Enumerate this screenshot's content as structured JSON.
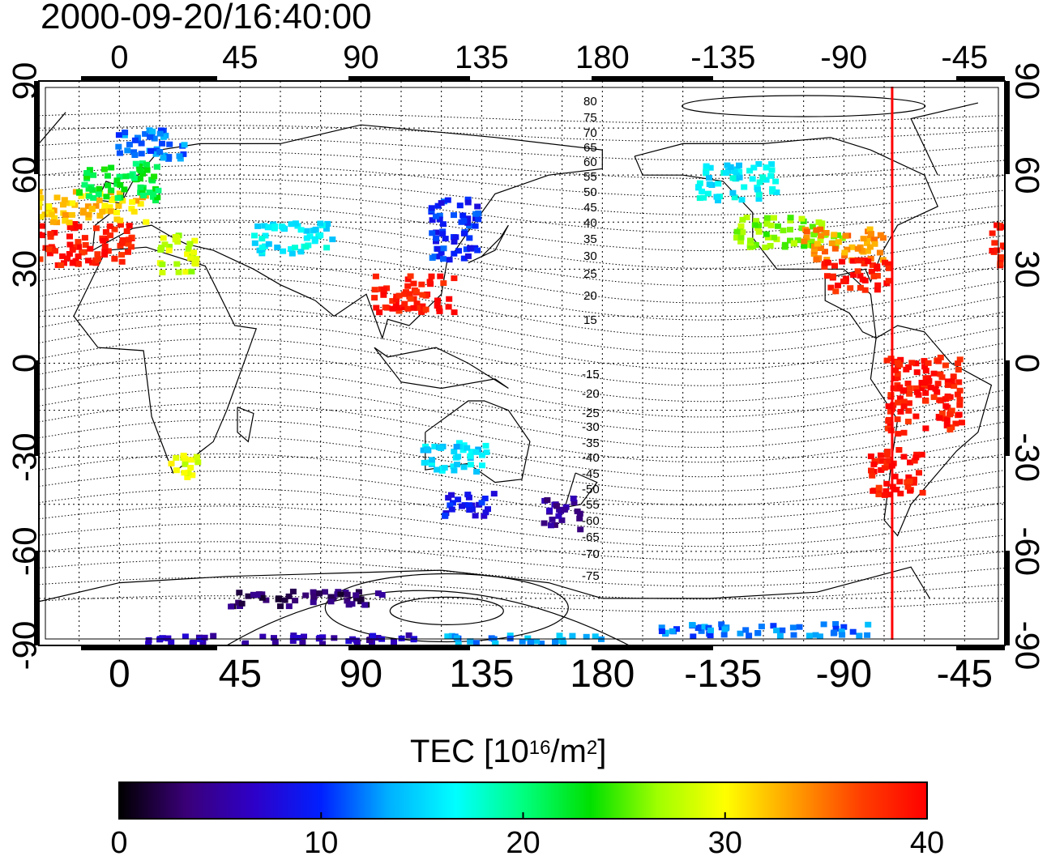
{
  "title": "2000-09-20/16:40:00",
  "x_ticks": [
    "0",
    "45",
    "90",
    "135",
    "180",
    "-135",
    "-90",
    "-45"
  ],
  "y_ticks": [
    "90",
    "60",
    "30",
    "0",
    "-30",
    "-60",
    "-90"
  ],
  "contour_labels_north": [
    "80",
    "75",
    "70",
    "65",
    "60",
    "55",
    "50",
    "45",
    "40",
    "35",
    "30",
    "25",
    "20",
    "15"
  ],
  "contour_labels_south": [
    "-15",
    "-20",
    "-25",
    "-30",
    "-35",
    "-40",
    "-45",
    "-50",
    "-55",
    "-60",
    "-65",
    "-70",
    "-75"
  ],
  "colorbar": {
    "label_main": "TEC  [10",
    "label_exp1": "16",
    "label_mid": "/m",
    "label_exp2": "2",
    "label_end": "]",
    "ticks": [
      "0",
      "10",
      "20",
      "30",
      "40"
    ],
    "min": 0,
    "max": 40,
    "colors": [
      "#000000",
      "#3a0078",
      "#2e00c8",
      "#0020ff",
      "#00b0ff",
      "#00ffff",
      "#00ff80",
      "#00e000",
      "#a0ff00",
      "#ffff00",
      "#ffa000",
      "#ff4000",
      "#ff0000"
    ]
  },
  "marker_longitude": -72,
  "marker_color": "#ff0000",
  "tec_patches": [
    {
      "lon": -15,
      "lat": 38,
      "w": 40,
      "h": 14,
      "tec": 39
    },
    {
      "lon": -10,
      "lat": 50,
      "w": 40,
      "h": 10,
      "tec": 32
    },
    {
      "lon": 0,
      "lat": 58,
      "w": 30,
      "h": 12,
      "tec": 22
    },
    {
      "lon": 12,
      "lat": 70,
      "w": 25,
      "h": 10,
      "tec": 12
    },
    {
      "lon": 22,
      "lat": 35,
      "w": 14,
      "h": 12,
      "tec": 28
    },
    {
      "lon": 65,
      "lat": 40,
      "w": 30,
      "h": 10,
      "tec": 16
    },
    {
      "lon": 125,
      "lat": 43,
      "w": 18,
      "h": 20,
      "tec": 10
    },
    {
      "lon": 110,
      "lat": 22,
      "w": 30,
      "h": 12,
      "tec": 39
    },
    {
      "lon": -130,
      "lat": 58,
      "w": 30,
      "h": 12,
      "tec": 16
    },
    {
      "lon": -110,
      "lat": 42,
      "w": 40,
      "h": 10,
      "tec": 26
    },
    {
      "lon": -90,
      "lat": 38,
      "w": 30,
      "h": 10,
      "tec": 34
    },
    {
      "lon": -85,
      "lat": 28,
      "w": 25,
      "h": 10,
      "tec": 39
    },
    {
      "lon": -60,
      "lat": -10,
      "w": 28,
      "h": 25,
      "tec": 39
    },
    {
      "lon": -70,
      "lat": -35,
      "w": 20,
      "h": 15,
      "tec": 39
    },
    {
      "lon": 25,
      "lat": -33,
      "w": 12,
      "h": 8,
      "tec": 29
    },
    {
      "lon": 125,
      "lat": -30,
      "w": 25,
      "h": 10,
      "tec": 15
    },
    {
      "lon": 130,
      "lat": -45,
      "w": 20,
      "h": 8,
      "tec": 9
    },
    {
      "lon": 165,
      "lat": -48,
      "w": 14,
      "h": 10,
      "tec": 5
    },
    {
      "lon": 70,
      "lat": -75,
      "w": 60,
      "h": 5,
      "tec": 3
    },
    {
      "lon": -120,
      "lat": -85,
      "w": 80,
      "h": 4,
      "tec": 12
    },
    {
      "lon": 60,
      "lat": -88,
      "w": 100,
      "h": 3,
      "tec": 6
    },
    {
      "lon": 150,
      "lat": -88,
      "w": 60,
      "h": 3,
      "tec": 13
    }
  ]
}
